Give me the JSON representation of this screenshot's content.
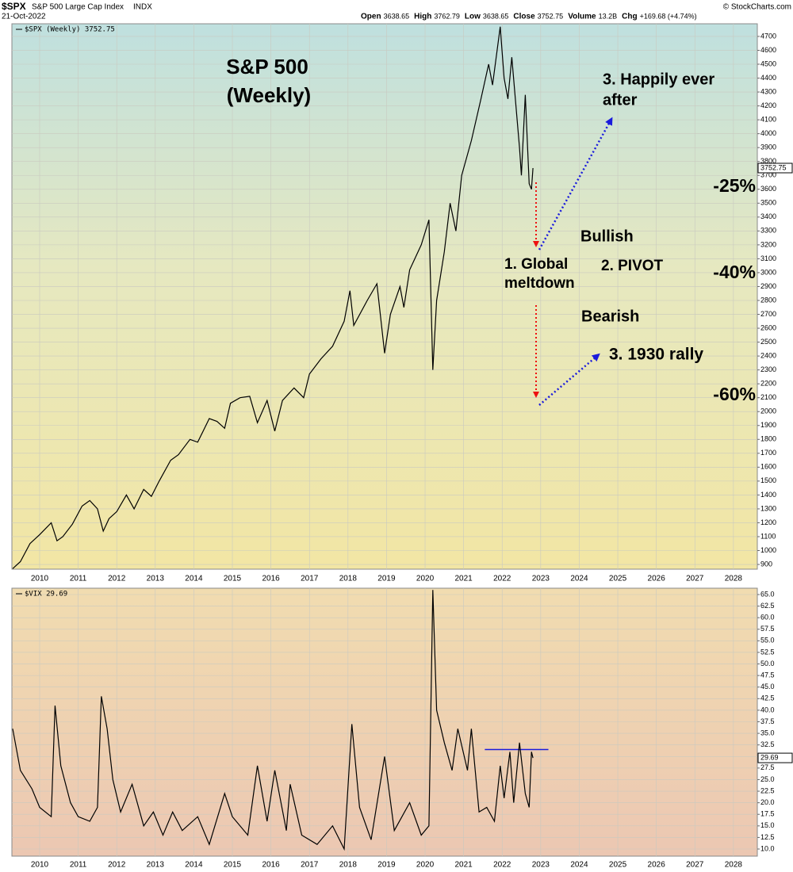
{
  "header": {
    "symbol": "$SPX",
    "name": "S&P 500 Large Cap Index",
    "exchange": "INDX",
    "date": "21-Oct-2022",
    "copyright": "© StockCharts.com",
    "quote": [
      {
        "label": "Open",
        "value": "3638.65"
      },
      {
        "label": "High",
        "value": "3762.79"
      },
      {
        "label": "Low",
        "value": "3638.65"
      },
      {
        "label": "Close",
        "value": "3752.75"
      },
      {
        "label": "Volume",
        "value": "13.2B"
      },
      {
        "label": "Chg",
        "value": "+169.68 (+4.74%)"
      }
    ]
  },
  "chart_data": [
    {
      "type": "line",
      "grid": true,
      "annotations": [
        {
          "text": "S&P 500",
          "color": "#000000"
        },
        {
          "text": "(Weekly)",
          "color": "#000000"
        },
        {
          "text": "3. Happily ever",
          "color": "#1a1adc"
        },
        {
          "text": "after",
          "color": "#1a1adc"
        },
        {
          "text": "-25%",
          "color": "#ee1111"
        },
        {
          "text": "Bullish",
          "color": "#1a1adc"
        },
        {
          "text": "1. Global",
          "color": "#ee1111"
        },
        {
          "text": "meltdown",
          "color": "#ee1111"
        },
        {
          "text": "2. PIVOT",
          "color": "#3a7a1a"
        },
        {
          "text": "-40%",
          "color": "#ee1111"
        },
        {
          "text": "Bearish",
          "color": "#ee1111"
        },
        {
          "text": "3. 1930 rally",
          "color": "#1a1adc"
        },
        {
          "text": "-60%",
          "color": "#ee1111"
        }
      ],
      "x": [
        2009.3,
        2009.5,
        2009.75,
        2010.0,
        2010.3,
        2010.45,
        2010.6,
        2010.85,
        2011.1,
        2011.3,
        2011.5,
        2011.65,
        2011.8,
        2012.0,
        2012.25,
        2012.45,
        2012.7,
        2012.9,
        2013.1,
        2013.4,
        2013.6,
        2013.9,
        2014.1,
        2014.4,
        2014.6,
        2014.8,
        2014.95,
        2015.2,
        2015.45,
        2015.65,
        2015.9,
        2016.1,
        2016.3,
        2016.6,
        2016.85,
        2017.0,
        2017.3,
        2017.6,
        2017.9,
        2018.05,
        2018.15,
        2018.5,
        2018.75,
        2018.95,
        2019.1,
        2019.35,
        2019.45,
        2019.6,
        2019.9,
        2020.1,
        2020.2,
        2020.3,
        2020.5,
        2020.65,
        2020.8,
        2020.95,
        2021.2,
        2021.45,
        2021.65,
        2021.75,
        2021.95,
        2022.05,
        2022.15,
        2022.25,
        2022.45,
        2022.5,
        2022.6,
        2022.7,
        2022.76,
        2022.8
      ],
      "series": [
        {
          "name": "$SPX (Weekly) 3752.75",
          "color": "#000000",
          "values": [
            870,
            920,
            1050,
            1115,
            1200,
            1070,
            1100,
            1190,
            1320,
            1360,
            1300,
            1140,
            1230,
            1280,
            1400,
            1300,
            1440,
            1390,
            1500,
            1650,
            1690,
            1800,
            1780,
            1950,
            1930,
            1880,
            2060,
            2100,
            2110,
            1920,
            2080,
            1860,
            2080,
            2170,
            2100,
            2270,
            2380,
            2470,
            2650,
            2870,
            2620,
            2800,
            2920,
            2420,
            2700,
            2900,
            2750,
            3020,
            3200,
            3380,
            2300,
            2800,
            3150,
            3500,
            3300,
            3700,
            3950,
            4250,
            4500,
            4350,
            4770,
            4400,
            4250,
            4550,
            3900,
            3700,
            4280,
            3640,
            3600,
            3752.75
          ]
        }
      ],
      "xlim": [
        2009.28,
        2028.62
      ],
      "xticks": [
        2010,
        2011,
        2012,
        2013,
        2014,
        2015,
        2016,
        2017,
        2018,
        2019,
        2020,
        2021,
        2022,
        2023,
        2024,
        2025,
        2026,
        2027,
        2028
      ],
      "ylim": [
        866,
        4791
      ],
      "yticks": [
        900,
        1000,
        1100,
        1200,
        1300,
        1400,
        1500,
        1600,
        1700,
        1800,
        1900,
        2000,
        2100,
        2200,
        2300,
        2400,
        2500,
        2600,
        2700,
        2800,
        2900,
        3000,
        3100,
        3200,
        3300,
        3400,
        3500,
        3600,
        3700,
        3800,
        3900,
        4000,
        4100,
        4200,
        4300,
        4400,
        4500,
        4600,
        4700
      ]
    },
    {
      "type": "line",
      "grid": true,
      "x": [
        2009.3,
        2009.5,
        2009.8,
        2010.0,
        2010.3,
        2010.4,
        2010.55,
        2010.8,
        2011.0,
        2011.3,
        2011.5,
        2011.6,
        2011.75,
        2011.9,
        2012.1,
        2012.4,
        2012.7,
        2012.95,
        2013.2,
        2013.45,
        2013.7,
        2014.1,
        2014.4,
        2014.8,
        2015.0,
        2015.4,
        2015.65,
        2015.9,
        2016.1,
        2016.4,
        2016.5,
        2016.8,
        2017.2,
        2017.6,
        2017.9,
        2018.1,
        2018.3,
        2018.6,
        2018.95,
        2019.2,
        2019.6,
        2019.9,
        2020.1,
        2020.2,
        2020.3,
        2020.5,
        2020.7,
        2020.85,
        2021.1,
        2021.2,
        2021.4,
        2021.6,
        2021.8,
        2021.95,
        2022.05,
        2022.2,
        2022.3,
        2022.45,
        2022.6,
        2022.7,
        2022.76,
        2022.8
      ],
      "series": [
        {
          "name": "$VIX 29.69",
          "color": "#000000",
          "values": [
            36,
            27,
            23,
            19,
            17,
            41,
            28,
            20,
            17,
            16,
            19,
            43,
            36,
            25,
            18,
            24,
            15,
            18,
            13,
            18,
            14,
            17,
            11,
            22,
            17,
            13,
            28,
            16,
            27,
            14,
            24,
            13,
            11,
            15,
            10,
            37,
            19,
            12,
            30,
            14,
            20,
            13,
            15,
            66,
            40,
            33,
            27,
            36,
            27,
            36,
            18,
            19,
            16,
            28,
            21,
            31,
            20,
            33,
            22,
            19,
            31,
            29.69
          ]
        }
      ],
      "reference_lines": [
        {
          "y": 31.5,
          "x": [
            2021.55,
            2023.2
          ],
          "color": "#1a1adc"
        }
      ],
      "xlim": [
        2009.28,
        2028.62
      ],
      "xticks": [
        2010,
        2011,
        2012,
        2013,
        2014,
        2015,
        2016,
        2017,
        2018,
        2019,
        2020,
        2021,
        2022,
        2023,
        2024,
        2025,
        2026,
        2027,
        2028
      ],
      "ylim": [
        8.46,
        66.37
      ],
      "yticks": [
        {
          "value": 10,
          "label": "10.0"
        },
        12.5,
        {
          "value": 15,
          "label": "15.0"
        },
        17.5,
        {
          "value": 20,
          "label": "20.0"
        },
        22.5,
        {
          "value": 25,
          "label": "25.0"
        },
        27.5,
        {
          "value": 30,
          "label": "30.0"
        },
        32.5,
        {
          "value": 35,
          "label": "35.0"
        },
        37.5,
        {
          "value": 40,
          "label": "40.0"
        },
        42.5,
        {
          "value": 45,
          "label": "45.0"
        },
        47.5,
        {
          "value": 50,
          "label": "50.0"
        },
        52.5,
        {
          "value": 55,
          "label": "55.0"
        },
        57.5,
        {
          "value": 60,
          "label": "60.0"
        },
        62.5,
        {
          "value": 65,
          "label": "65.0"
        }
      ]
    }
  ]
}
